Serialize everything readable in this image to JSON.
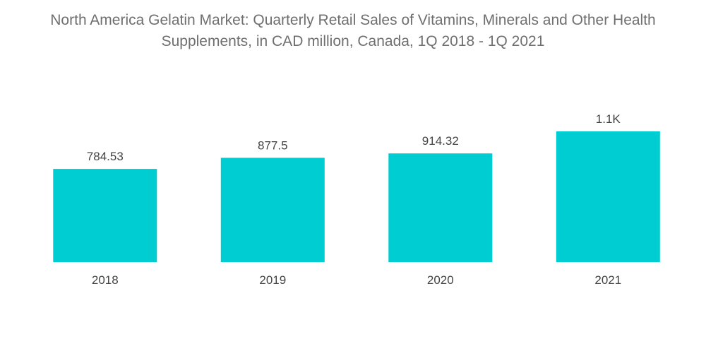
{
  "chart_data": {
    "type": "bar",
    "title_lines": [
      "North America Gelatin Market: Quarterly Retail Sales of Vitamins, Minerals and Other Health",
      "Supplements, in CAD million, Canada, 1Q 2018 - 1Q 2021"
    ],
    "categories": [
      "2018",
      "2019",
      "2020",
      "2021"
    ],
    "values": [
      784.53,
      877.5,
      914.32,
      1100
    ],
    "data_labels": [
      "784.53",
      "877.5",
      "914.32",
      "1.1K"
    ],
    "xlabel": "",
    "ylabel": "",
    "ylim": [
      0,
      1100
    ],
    "grid": false,
    "legend": "none",
    "bar_color": "#00cdd1"
  }
}
